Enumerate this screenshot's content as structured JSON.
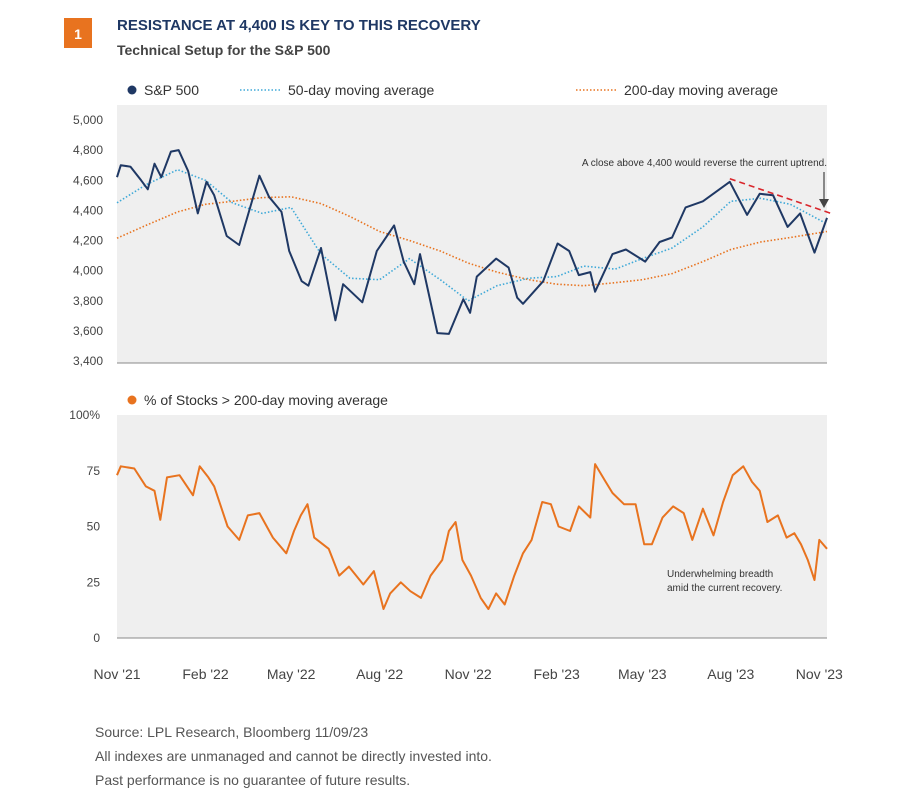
{
  "figure": {
    "number": "1",
    "title": "RESISTANCE AT 4,400 IS KEY TO THIS RECOVERY",
    "subtitle": "Technical Setup for the S&P 500",
    "colors": {
      "accent": "#e8731f",
      "title": "#1f3864",
      "panel_bg": "#efefef",
      "sp500": "#1f3864",
      "ma50": "#3fa9d8",
      "ma200": "#e8731f",
      "breadth": "#e8731f",
      "trendline": "#d9262c"
    }
  },
  "chart_data": [
    {
      "type": "line",
      "ylim": [
        3400,
        5000
      ],
      "yticks": [
        "5,000",
        "4,800",
        "4,600",
        "4,400",
        "4,200",
        "4,000",
        "3,800",
        "3,600",
        "3,400"
      ],
      "ytick_values": [
        5000,
        4800,
        4600,
        4400,
        4200,
        4000,
        3800,
        3600,
        3400
      ],
      "x_range": [
        "2021-11-01",
        "2023-11-09"
      ],
      "legend_placement": "top",
      "annotation": "A close above 4,400 would reverse the current uptrend.",
      "series": [
        {
          "name": "S&P 500",
          "style": "solid",
          "points": [
            [
              "2021-11-01",
              4620
            ],
            [
              "2021-11-05",
              4700
            ],
            [
              "2021-11-15",
              4690
            ],
            [
              "2021-11-26",
              4600
            ],
            [
              "2021-12-03",
              4540
            ],
            [
              "2021-12-10",
              4710
            ],
            [
              "2021-12-17",
              4620
            ],
            [
              "2021-12-27",
              4790
            ],
            [
              "2022-01-04",
              4800
            ],
            [
              "2022-01-14",
              4660
            ],
            [
              "2022-01-24",
              4380
            ],
            [
              "2022-02-02",
              4590
            ],
            [
              "2022-02-10",
              4500
            ],
            [
              "2022-02-23",
              4230
            ],
            [
              "2022-03-08",
              4170
            ],
            [
              "2022-03-29",
              4630
            ],
            [
              "2022-04-08",
              4490
            ],
            [
              "2022-04-21",
              4390
            ],
            [
              "2022-04-29",
              4130
            ],
            [
              "2022-05-12",
              3930
            ],
            [
              "2022-05-19",
              3900
            ],
            [
              "2022-06-01",
              4150
            ],
            [
              "2022-06-16",
              3670
            ],
            [
              "2022-06-24",
              3910
            ],
            [
              "2022-07-14",
              3790
            ],
            [
              "2022-07-29",
              4130
            ],
            [
              "2022-08-16",
              4300
            ],
            [
              "2022-08-26",
              4060
            ],
            [
              "2022-09-06",
              3910
            ],
            [
              "2022-09-12",
              4110
            ],
            [
              "2022-09-30",
              3585
            ],
            [
              "2022-10-12",
              3580
            ],
            [
              "2022-10-27",
              3810
            ],
            [
              "2022-11-03",
              3720
            ],
            [
              "2022-11-10",
              3960
            ],
            [
              "2022-11-30",
              4080
            ],
            [
              "2022-12-13",
              4020
            ],
            [
              "2022-12-22",
              3820
            ],
            [
              "2022-12-28",
              3780
            ],
            [
              "2023-01-18",
              3930
            ],
            [
              "2023-02-02",
              4180
            ],
            [
              "2023-02-14",
              4130
            ],
            [
              "2023-02-24",
              3970
            ],
            [
              "2023-03-08",
              3990
            ],
            [
              "2023-03-13",
              3860
            ],
            [
              "2023-03-31",
              4110
            ],
            [
              "2023-04-14",
              4140
            ],
            [
              "2023-05-04",
              4060
            ],
            [
              "2023-05-19",
              4190
            ],
            [
              "2023-06-01",
              4220
            ],
            [
              "2023-06-15",
              4420
            ],
            [
              "2023-07-03",
              4460
            ],
            [
              "2023-07-31",
              4590
            ],
            [
              "2023-08-18",
              4370
            ],
            [
              "2023-08-31",
              4510
            ],
            [
              "2023-09-14",
              4500
            ],
            [
              "2023-09-29",
              4290
            ],
            [
              "2023-10-12",
              4380
            ],
            [
              "2023-10-27",
              4120
            ],
            [
              "2023-11-09",
              4350
            ]
          ]
        },
        {
          "name": "50-day moving average",
          "style": "dotted",
          "points": [
            [
              "2021-11-01",
              4450
            ],
            [
              "2021-12-01",
              4570
            ],
            [
              "2022-01-03",
              4670
            ],
            [
              "2022-02-01",
              4600
            ],
            [
              "2022-03-01",
              4450
            ],
            [
              "2022-04-01",
              4380
            ],
            [
              "2022-05-01",
              4420
            ],
            [
              "2022-06-01",
              4110
            ],
            [
              "2022-07-01",
              3950
            ],
            [
              "2022-08-01",
              3940
            ],
            [
              "2022-09-01",
              4080
            ],
            [
              "2022-10-03",
              3940
            ],
            [
              "2022-11-01",
              3800
            ],
            [
              "2022-12-01",
              3900
            ],
            [
              "2023-01-03",
              3950
            ],
            [
              "2023-02-01",
              3960
            ],
            [
              "2023-03-01",
              4030
            ],
            [
              "2023-04-03",
              4010
            ],
            [
              "2023-05-01",
              4080
            ],
            [
              "2023-06-01",
              4150
            ],
            [
              "2023-07-03",
              4290
            ],
            [
              "2023-08-01",
              4460
            ],
            [
              "2023-09-01",
              4480
            ],
            [
              "2023-10-02",
              4440
            ],
            [
              "2023-11-09",
              4310
            ]
          ]
        },
        {
          "name": "200-day moving average",
          "style": "dotted",
          "points": [
            [
              "2021-11-01",
              4215
            ],
            [
              "2021-12-01",
              4300
            ],
            [
              "2022-01-03",
              4390
            ],
            [
              "2022-02-01",
              4440
            ],
            [
              "2022-03-01",
              4460
            ],
            [
              "2022-04-01",
              4485
            ],
            [
              "2022-05-01",
              4490
            ],
            [
              "2022-06-01",
              4445
            ],
            [
              "2022-07-01",
              4360
            ],
            [
              "2022-08-01",
              4260
            ],
            [
              "2022-09-01",
              4200
            ],
            [
              "2022-10-03",
              4130
            ],
            [
              "2022-11-01",
              4050
            ],
            [
              "2022-12-01",
              3990
            ],
            [
              "2023-01-03",
              3940
            ],
            [
              "2023-02-01",
              3910
            ],
            [
              "2023-03-01",
              3900
            ],
            [
              "2023-04-03",
              3920
            ],
            [
              "2023-05-01",
              3940
            ],
            [
              "2023-06-01",
              3980
            ],
            [
              "2023-07-03",
              4060
            ],
            [
              "2023-08-01",
              4140
            ],
            [
              "2023-09-01",
              4190
            ],
            [
              "2023-10-02",
              4220
            ],
            [
              "2023-11-09",
              4260
            ]
          ]
        }
      ],
      "trendline": [
        [
          "2023-07-31",
          4610
        ],
        [
          "2023-11-09",
          4380
        ]
      ]
    },
    {
      "type": "line",
      "ylim": [
        0,
        100
      ],
      "yticks": [
        "100%",
        "75",
        "50",
        "25",
        "0"
      ],
      "ytick_values": [
        100,
        75,
        50,
        25,
        0
      ],
      "x_range": [
        "2021-11-01",
        "2023-11-09"
      ],
      "xticks": [
        "Nov '21",
        "Feb '22",
        "May '22",
        "Aug '22",
        "Nov '22",
        "Feb '23",
        "May '23",
        "Aug '23",
        "Nov '23"
      ],
      "xtick_values": [
        "2021-11-01",
        "2022-02-01",
        "2022-05-01",
        "2022-08-01",
        "2022-11-01",
        "2023-02-01",
        "2023-05-01",
        "2023-08-01",
        "2023-11-01"
      ],
      "legend_placement": "top",
      "annotation": [
        "Underwhelming breadth",
        "amid the current recovery."
      ],
      "series": [
        {
          "name": "% of Stocks > 200-day moving average",
          "style": "solid",
          "points": [
            [
              "2021-11-01",
              73
            ],
            [
              "2021-11-05",
              77
            ],
            [
              "2021-11-19",
              76
            ],
            [
              "2021-12-01",
              68
            ],
            [
              "2021-12-10",
              66
            ],
            [
              "2021-12-16",
              53
            ],
            [
              "2021-12-23",
              72
            ],
            [
              "2022-01-05",
              73
            ],
            [
              "2022-01-19",
              64
            ],
            [
              "2022-01-26",
              77
            ],
            [
              "2022-02-04",
              72
            ],
            [
              "2022-02-10",
              68
            ],
            [
              "2022-02-24",
              50
            ],
            [
              "2022-03-08",
              44
            ],
            [
              "2022-03-17",
              55
            ],
            [
              "2022-03-29",
              56
            ],
            [
              "2022-04-12",
              45
            ],
            [
              "2022-04-26",
              38
            ],
            [
              "2022-05-04",
              48
            ],
            [
              "2022-05-11",
              55
            ],
            [
              "2022-05-18",
              60
            ],
            [
              "2022-05-25",
              45
            ],
            [
              "2022-06-09",
              40
            ],
            [
              "2022-06-20",
              28
            ],
            [
              "2022-06-30",
              32
            ],
            [
              "2022-07-15",
              24
            ],
            [
              "2022-07-26",
              30
            ],
            [
              "2022-08-05",
              13
            ],
            [
              "2022-08-12",
              20
            ],
            [
              "2022-08-23",
              25
            ],
            [
              "2022-09-02",
              21
            ],
            [
              "2022-09-13",
              18
            ],
            [
              "2022-09-23",
              28
            ],
            [
              "2022-10-05",
              35
            ],
            [
              "2022-10-12",
              48
            ],
            [
              "2022-10-19",
              52
            ],
            [
              "2022-10-26",
              35
            ],
            [
              "2022-11-04",
              28
            ],
            [
              "2022-11-14",
              18
            ],
            [
              "2022-11-22",
              13
            ],
            [
              "2022-11-30",
              20
            ],
            [
              "2022-12-09",
              15
            ],
            [
              "2022-12-19",
              28
            ],
            [
              "2022-12-28",
              38
            ],
            [
              "2023-01-06",
              44
            ],
            [
              "2023-01-17",
              61
            ],
            [
              "2023-01-26",
              60
            ],
            [
              "2023-02-03",
              50
            ],
            [
              "2023-02-15",
              48
            ],
            [
              "2023-02-24",
              59
            ],
            [
              "2023-03-08",
              54
            ],
            [
              "2023-03-13",
              78
            ],
            [
              "2023-03-24",
              70
            ],
            [
              "2023-03-31",
              65
            ],
            [
              "2023-04-12",
              60
            ],
            [
              "2023-04-24",
              60
            ],
            [
              "2023-05-03",
              42
            ],
            [
              "2023-05-11",
              42
            ],
            [
              "2023-05-22",
              54
            ],
            [
              "2023-06-02",
              59
            ],
            [
              "2023-06-13",
              56
            ],
            [
              "2023-06-22",
              44
            ],
            [
              "2023-07-03",
              58
            ],
            [
              "2023-07-14",
              46
            ],
            [
              "2023-07-24",
              61
            ],
            [
              "2023-08-03",
              73
            ],
            [
              "2023-08-14",
              77
            ],
            [
              "2023-08-23",
              70
            ],
            [
              "2023-08-31",
              66
            ],
            [
              "2023-09-08",
              52
            ],
            [
              "2023-09-19",
              55
            ],
            [
              "2023-09-28",
              45
            ],
            [
              "2023-10-06",
              47
            ],
            [
              "2023-10-13",
              42
            ],
            [
              "2023-10-20",
              35
            ],
            [
              "2023-10-27",
              26
            ],
            [
              "2023-11-01",
              44
            ],
            [
              "2023-11-09",
              40
            ]
          ]
        }
      ]
    }
  ],
  "footer": {
    "source": "Source: LPL Research, Bloomberg 11/09/23",
    "disclaimer1": "All indexes are unmanaged and cannot be directly invested into.",
    "disclaimer2": "Past performance is no guarantee of future results."
  }
}
